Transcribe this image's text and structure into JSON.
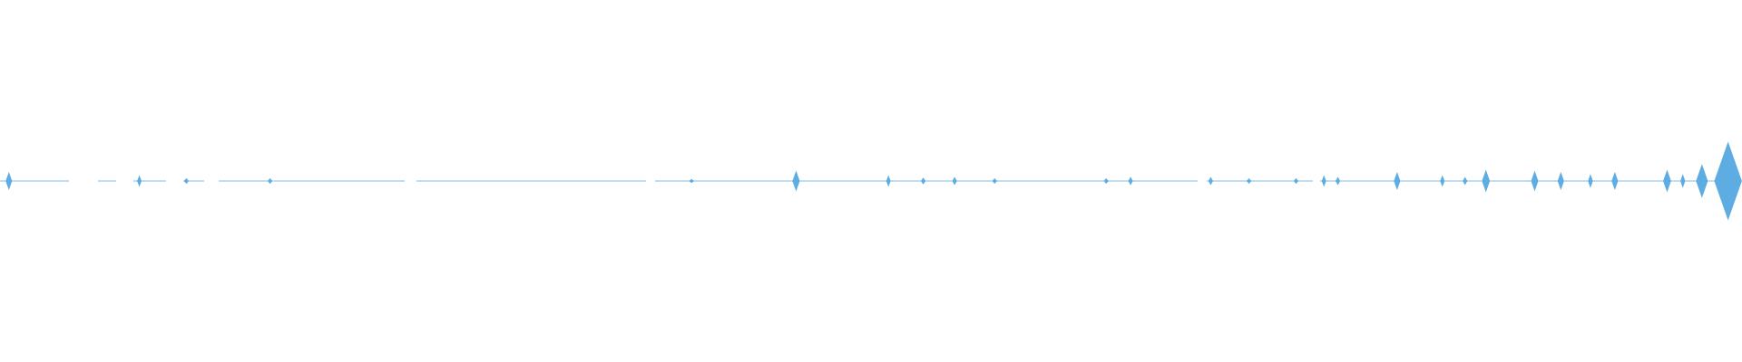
{
  "waveform": {
    "color": "#5dade2",
    "x": [
      0.0051,
      0.08,
      0.107,
      0.155,
      0.397,
      0.457,
      0.51,
      0.53,
      0.548,
      0.571,
      0.635,
      0.649,
      0.695,
      0.717,
      0.744,
      0.76,
      0.768,
      0.802,
      0.828,
      0.841,
      0.853,
      0.881,
      0.896,
      0.913,
      0.927,
      0.957,
      0.966,
      0.977,
      0.992,
      0.998
    ],
    "amplitudes": [
      0.043,
      0.025,
      0.012,
      0.012,
      0.008,
      0.05,
      0.025,
      0.015,
      0.018,
      0.012,
      0.012,
      0.018,
      0.018,
      0.012,
      0.012,
      0.025,
      0.018,
      0.043,
      0.025,
      0.018,
      0.055,
      0.049,
      0.043,
      0.031,
      0.043,
      0.055,
      0.031,
      0.086,
      0.21,
      0.03
    ]
  }
}
